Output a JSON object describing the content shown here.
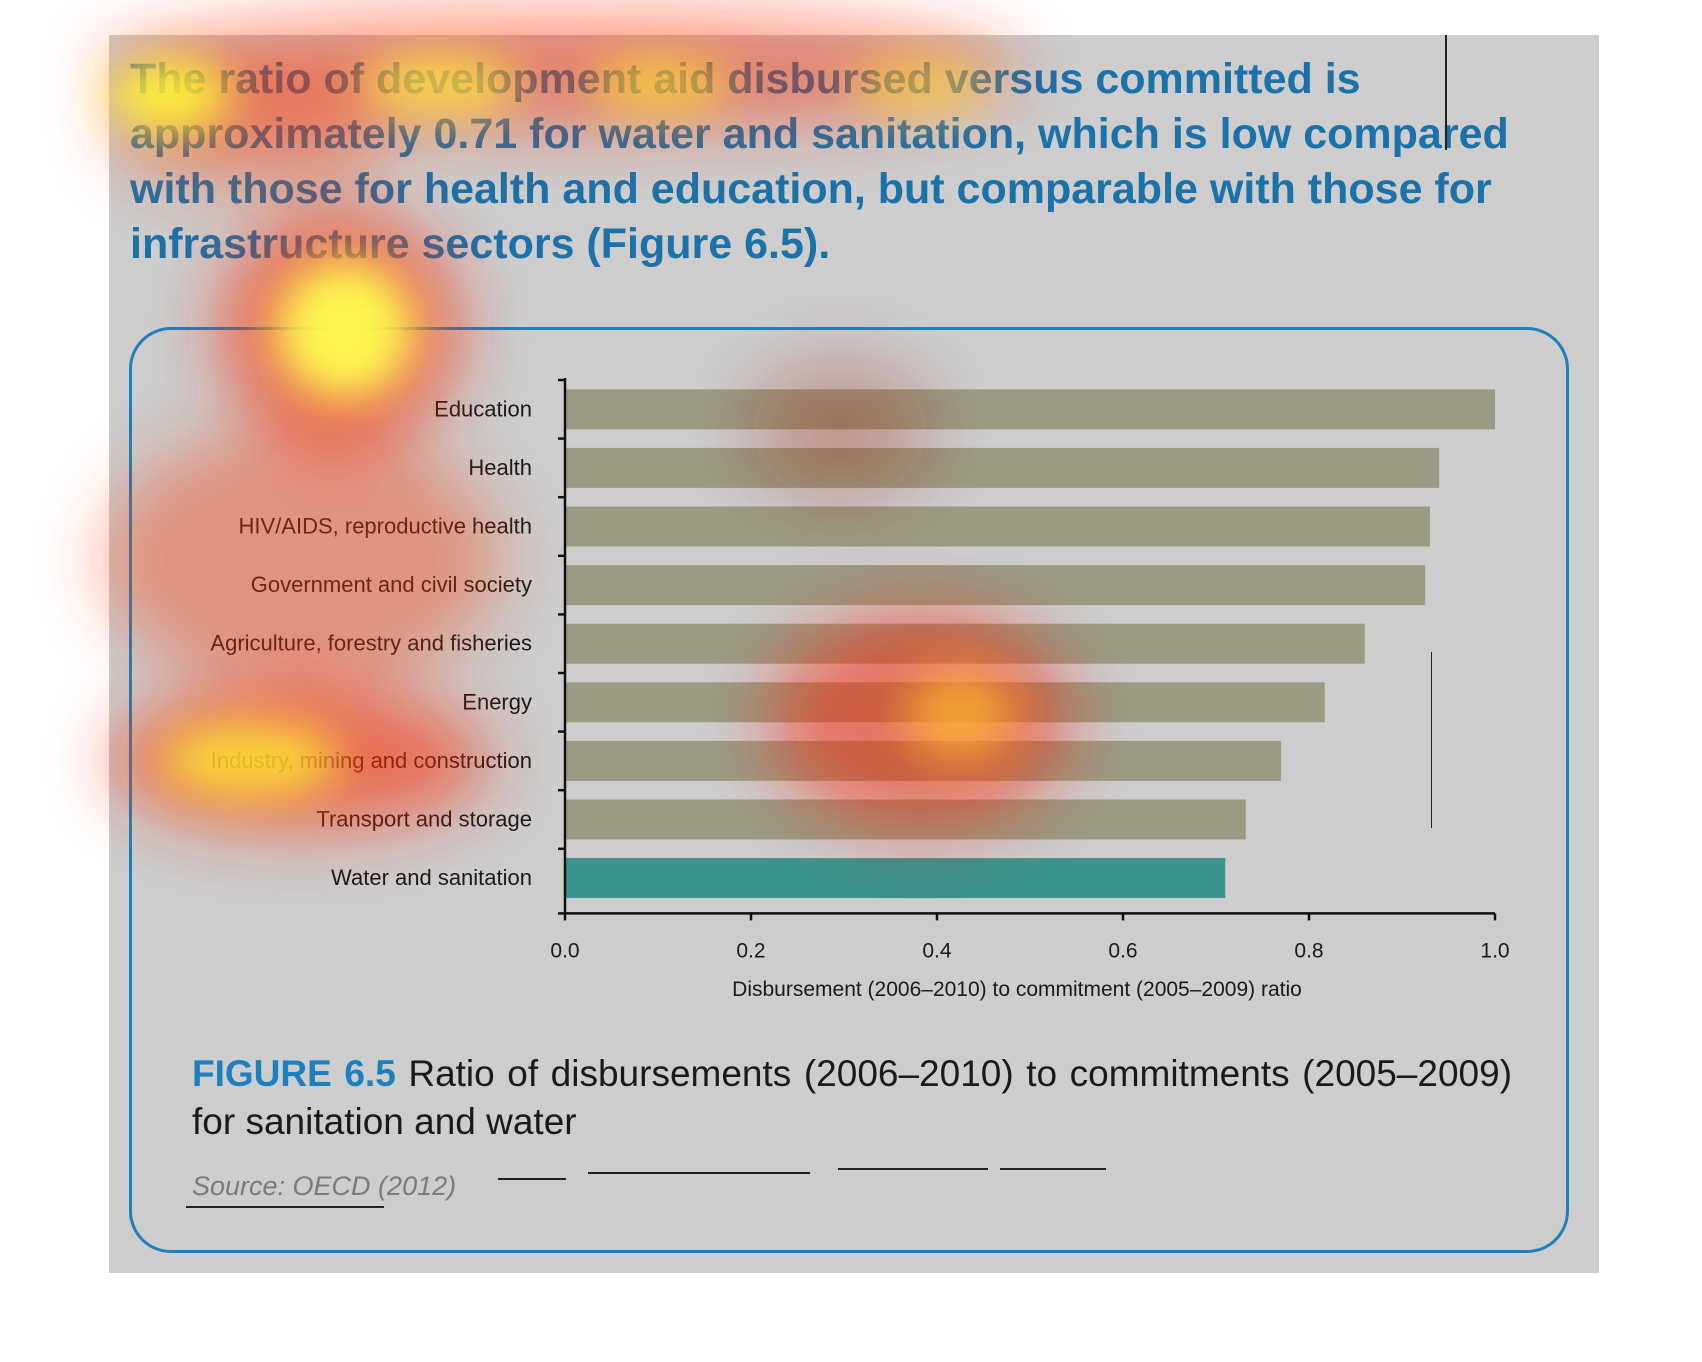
{
  "headline": "The ratio of development aid disbursed versus committed is approximately 0.71 for water and sanitation, which is low compared with those for health and education, but comparable with those for infrastructure sectors (Figure 6.5).",
  "caption": {
    "label": "FIGURE 6.5",
    "text": "Ratio of disbursements (2006–2010) to commitments (2005–2009) for sanitation and water"
  },
  "source": "Source: OECD (2012)",
  "colors": {
    "panel": "#cdcdcd",
    "bar": "#9b9b84",
    "highlight_bar": "#3b958c",
    "accent": "#1b80bb"
  },
  "chart_data": {
    "type": "bar",
    "orientation": "horizontal",
    "categories": [
      "Education",
      "Health",
      "HIV/AIDS, reproductive health",
      "Government and civil society",
      "Agriculture, forestry and fisheries",
      "Energy",
      "Industry, mining and construction",
      "Transport and storage",
      "Water and sanitation"
    ],
    "values": [
      1.0,
      0.94,
      0.93,
      0.925,
      0.86,
      0.817,
      0.77,
      0.732,
      0.71
    ],
    "highlight": "Water and sanitation",
    "xlabel": "Disbursement (2006–2010) to commitment (2005–2009) ratio",
    "ylabel": "",
    "xlim": [
      0,
      1.0
    ],
    "xticks": [
      "0.0",
      "0.2",
      "0.4",
      "0.6",
      "0.8",
      "1.0"
    ],
    "grid": false,
    "legend": "none"
  }
}
